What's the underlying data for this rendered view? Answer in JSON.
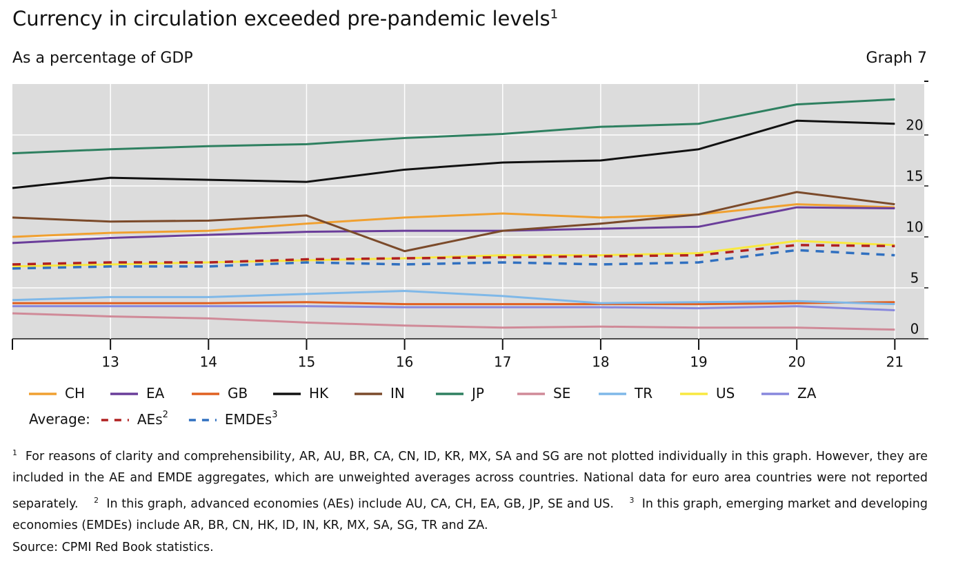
{
  "chart_data": {
    "type": "line",
    "title": "Currency in circulation exceeded pre-pandemic levels",
    "title_note": "1",
    "subtitle": "As a percentage of GDP",
    "graph_label": "Graph 7",
    "x": [
      12,
      13,
      14,
      15,
      16,
      17,
      18,
      19,
      20,
      21
    ],
    "xlim": [
      12,
      21.3
    ],
    "xticks": [
      13,
      14,
      15,
      16,
      17,
      18,
      19,
      20,
      21
    ],
    "ylim": [
      0,
      25
    ],
    "yticks": [
      0,
      5,
      10,
      15,
      20
    ],
    "grid": true,
    "series": [
      {
        "name": "CH",
        "color": "#f0a030",
        "values": [
          10.0,
          10.4,
          10.6,
          11.3,
          11.9,
          12.3,
          11.9,
          12.2,
          13.2,
          12.9
        ]
      },
      {
        "name": "EA",
        "color": "#6a3d9a",
        "values": [
          9.4,
          9.9,
          10.2,
          10.5,
          10.6,
          10.6,
          10.8,
          11.0,
          12.9,
          12.8
        ]
      },
      {
        "name": "GB",
        "color": "#e06020",
        "values": [
          3.5,
          3.5,
          3.5,
          3.6,
          3.4,
          3.4,
          3.4,
          3.4,
          3.5,
          3.6
        ]
      },
      {
        "name": "HK",
        "color": "#111111",
        "values": [
          14.8,
          15.8,
          15.6,
          15.4,
          16.6,
          17.3,
          17.5,
          18.6,
          21.4,
          21.1
        ]
      },
      {
        "name": "IN",
        "color": "#7b4a2a",
        "values": [
          11.9,
          11.5,
          11.6,
          12.1,
          8.6,
          10.6,
          11.3,
          12.2,
          14.4,
          13.2
        ]
      },
      {
        "name": "JP",
        "color": "#2e8060",
        "values": [
          18.2,
          18.6,
          18.9,
          19.1,
          19.7,
          20.1,
          20.8,
          21.1,
          23.0,
          23.5
        ]
      },
      {
        "name": "SE",
        "color": "#d08a98",
        "values": [
          2.5,
          2.2,
          2.0,
          1.6,
          1.3,
          1.1,
          1.2,
          1.1,
          1.1,
          0.9
        ]
      },
      {
        "name": "TR",
        "color": "#7fb8e8",
        "values": [
          3.8,
          4.1,
          4.1,
          4.4,
          4.7,
          4.2,
          3.5,
          3.6,
          3.7,
          3.4
        ]
      },
      {
        "name": "US",
        "color": "#f8e840",
        "values": [
          7.1,
          7.3,
          7.5,
          7.7,
          7.9,
          8.2,
          8.2,
          8.4,
          9.6,
          9.2
        ]
      },
      {
        "name": "ZA",
        "color": "#8888dd",
        "values": [
          3.2,
          3.2,
          3.2,
          3.2,
          3.1,
          3.1,
          3.1,
          3.0,
          3.2,
          2.8
        ]
      },
      {
        "name": "AEs",
        "name_note": "2",
        "group": "Average:",
        "dashed": true,
        "color": "#b02020",
        "values": [
          7.3,
          7.5,
          7.5,
          7.8,
          7.9,
          8.0,
          8.1,
          8.2,
          9.2,
          9.1
        ]
      },
      {
        "name": "EMDEs",
        "name_note": "3",
        "dashed": true,
        "color": "#3070c0",
        "values": [
          6.9,
          7.1,
          7.1,
          7.5,
          7.3,
          7.5,
          7.3,
          7.5,
          8.7,
          8.2
        ]
      }
    ],
    "notes": [
      {
        "mark": "1",
        "text": "For reasons of clarity and comprehensibility, AR, AU, BR, CA, CN, ID, KR, MX, SA and SG are not plotted individually in this graph. However, they are included in the AE and EMDE aggregates, which are unweighted averages across countries. National data for euro area countries were not reported separately."
      },
      {
        "mark": "2",
        "text": "In this graph, advanced economies (AEs) include AU, CA, CH, EA, GB, JP, SE and US."
      },
      {
        "mark": "3",
        "text": "In this graph, emerging market and developing economies (EMDEs) include AR, BR, CN, HK, ID, IN, KR, MX, SA, SG, TR and ZA."
      }
    ],
    "source": "Source: CPMI Red Book statistics."
  }
}
